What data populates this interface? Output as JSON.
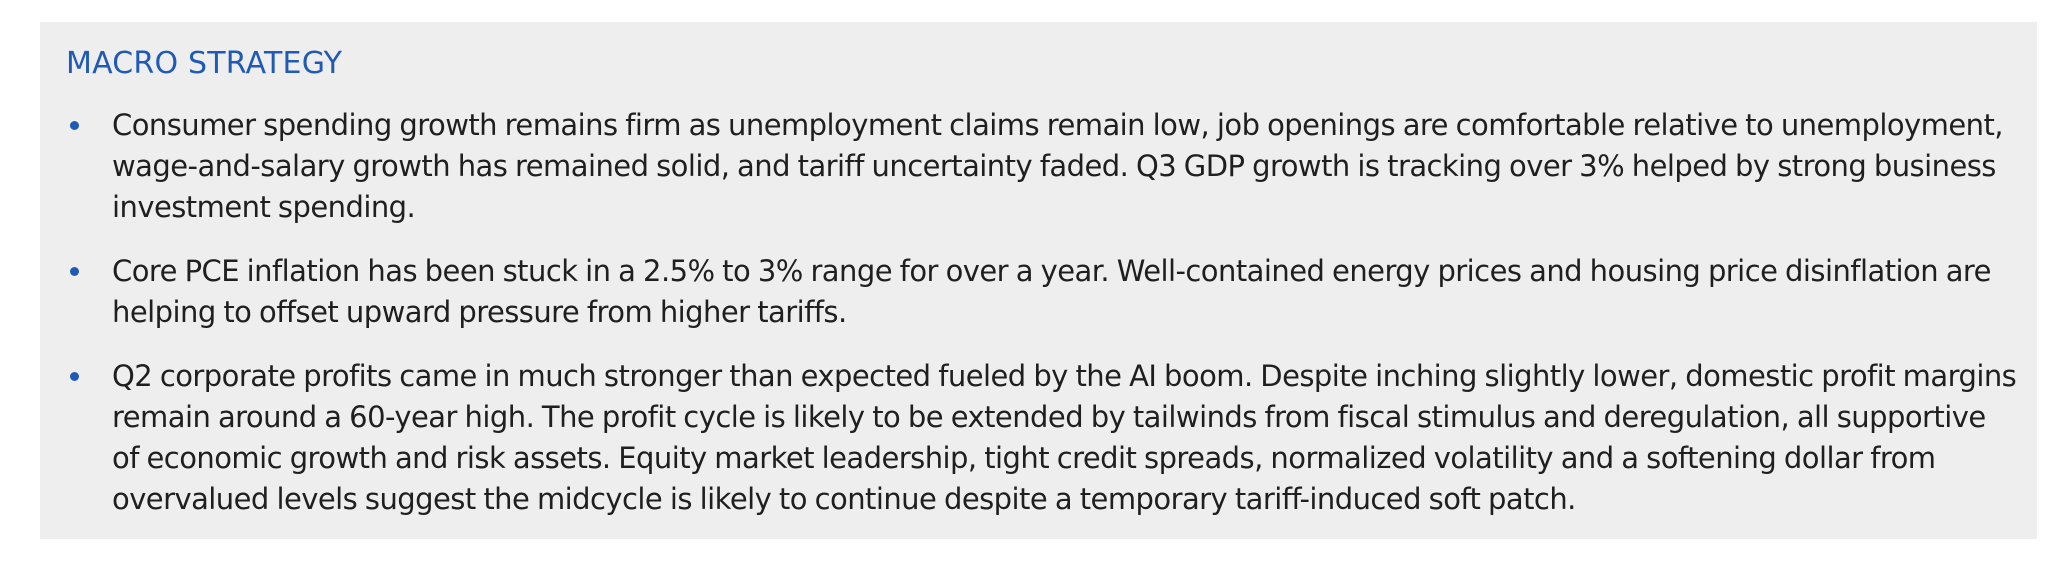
{
  "section": {
    "heading": "MACRO STRATEGY",
    "bullets": [
      "Consumer spending growth remains firm as unemployment claims remain low, job openings are comfortable relative to unemployment, wage-and-salary growth has remained solid, and tariff uncertainty faded. Q3 GDP growth is tracking over 3% helped by strong business investment spending.",
      "Core PCE inflation has been stuck in a 2.5% to 3% range for over a year. Well-contained energy prices and housing price disinflation are helping to offset upward pressure from higher tariffs.",
      "Q2 corporate profits came in much stronger than expected fueled by the AI boom. Despite inching slightly lower, domestic profit margins remain around a 60-year high. The profit cycle is likely to be extended by tailwinds from fiscal stimulus and deregulation, all supportive of economic growth and risk assets. Equity market leadership, tight credit spreads, normalized volatility and a softening dollar from overvalued levels suggest the midcycle is likely to continue despite a temporary tariff-induced soft patch."
    ]
  },
  "colors": {
    "heading": "#1f5bb5",
    "bullet_marker": "#1f5bb5",
    "panel_background": "#eeeeee",
    "body_text": "#1f1f1f"
  }
}
